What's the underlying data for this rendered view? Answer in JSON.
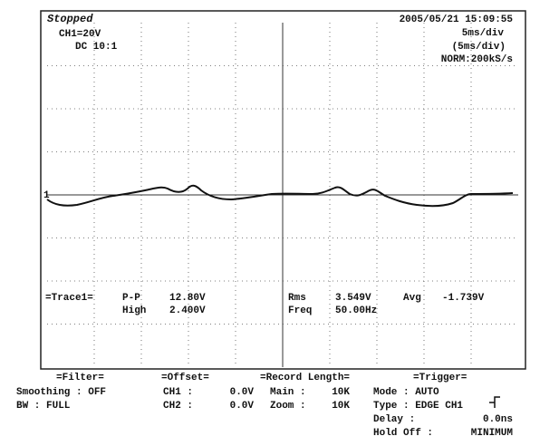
{
  "status": "Stopped",
  "channel": {
    "scale": "CH1=20V",
    "coupling": "DC 10:1"
  },
  "timestamp": "2005/05/21 15:09:55",
  "timebase": [
    "5ms/div",
    "(5ms/div)",
    "NORM:200kS/s"
  ],
  "trace_marker": "1",
  "measurements": {
    "title": "=Trace1=",
    "items": [
      {
        "label": "P-P",
        "value": "12.80V"
      },
      {
        "label": "High",
        "value": "2.400V"
      },
      {
        "label": "Rms",
        "value": "3.549V"
      },
      {
        "label": "Freq",
        "value": "50.00Hz"
      },
      {
        "label": "Avg",
        "value": "-1.739V"
      }
    ]
  },
  "filter": {
    "title": "=Filter=",
    "rows": [
      "Smoothing : OFF",
      "BW : FULL"
    ]
  },
  "offset": {
    "title": "=Offset=",
    "rows": [
      {
        "label": "CH1 :",
        "value": "0.0V"
      },
      {
        "label": "CH2 :",
        "value": "0.0V"
      }
    ]
  },
  "record_length": {
    "title": "=Record Length=",
    "rows": [
      {
        "label": "Main :",
        "value": "10K"
      },
      {
        "label": "Zoom :",
        "value": "10K"
      }
    ]
  },
  "trigger": {
    "title": "=Trigger=",
    "rows": [
      {
        "label": "Mode : AUTO",
        "value": ""
      },
      {
        "label": "Type : EDGE CH1",
        "value": ""
      },
      {
        "label": "Delay :",
        "value": "0.0ns"
      },
      {
        "label": "Hold Off :",
        "value": "MINIMUM"
      }
    ]
  }
}
